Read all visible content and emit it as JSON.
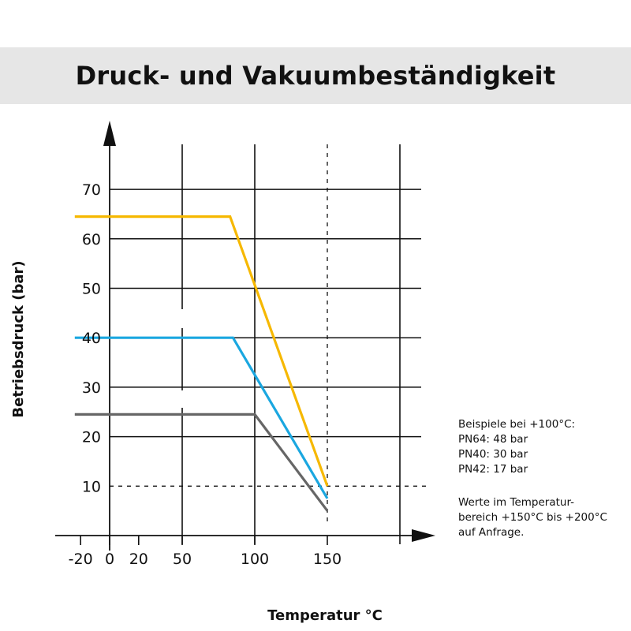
{
  "header": {
    "title": "Druck- und Vakuumbeständigkeit"
  },
  "notes": {
    "examples": [
      "Beispiele bei +100°C:",
      "PN64: 48 bar",
      "PN40: 30 bar",
      "PN42: 17 bar"
    ],
    "range": [
      "Werte im Temperatur-",
      "bereich +150°C bis +200°C",
      "auf Anfrage."
    ]
  },
  "chart_data": {
    "type": "line",
    "title": "",
    "xlabel": "Temperatur °C",
    "ylabel": "Betriebsdruck (bar)",
    "xlim": [
      -38,
      225
    ],
    "ylim": [
      0,
      80
    ],
    "x_ticks": [
      -20,
      0,
      20,
      50,
      100,
      150
    ],
    "x_tick_labels": [
      "-20",
      "0",
      "20",
      "50",
      "100",
      "150"
    ],
    "x_gridlines": [
      50,
      100,
      150,
      200
    ],
    "x_dashed_gridline": 150,
    "y_ticks": [
      10,
      20,
      30,
      40,
      50,
      60,
      70
    ],
    "y_tick_labels": [
      "10",
      "20",
      "30",
      "40",
      "50",
      "60",
      "70"
    ],
    "y_dashed_gridline": 10,
    "grid": true,
    "legend": "none",
    "series": [
      {
        "color": "#f6b800",
        "x": [
          -24,
          83,
          150
        ],
        "y": [
          64.5,
          64.5,
          10
        ]
      },
      {
        "color": "#1aa7e0",
        "x": [
          -24,
          85,
          150
        ],
        "y": [
          40,
          40,
          7.5
        ]
      },
      {
        "color": "#666666",
        "x": [
          -24,
          100,
          150
        ],
        "y": [
          24.5,
          24.5,
          5
        ]
      }
    ]
  }
}
